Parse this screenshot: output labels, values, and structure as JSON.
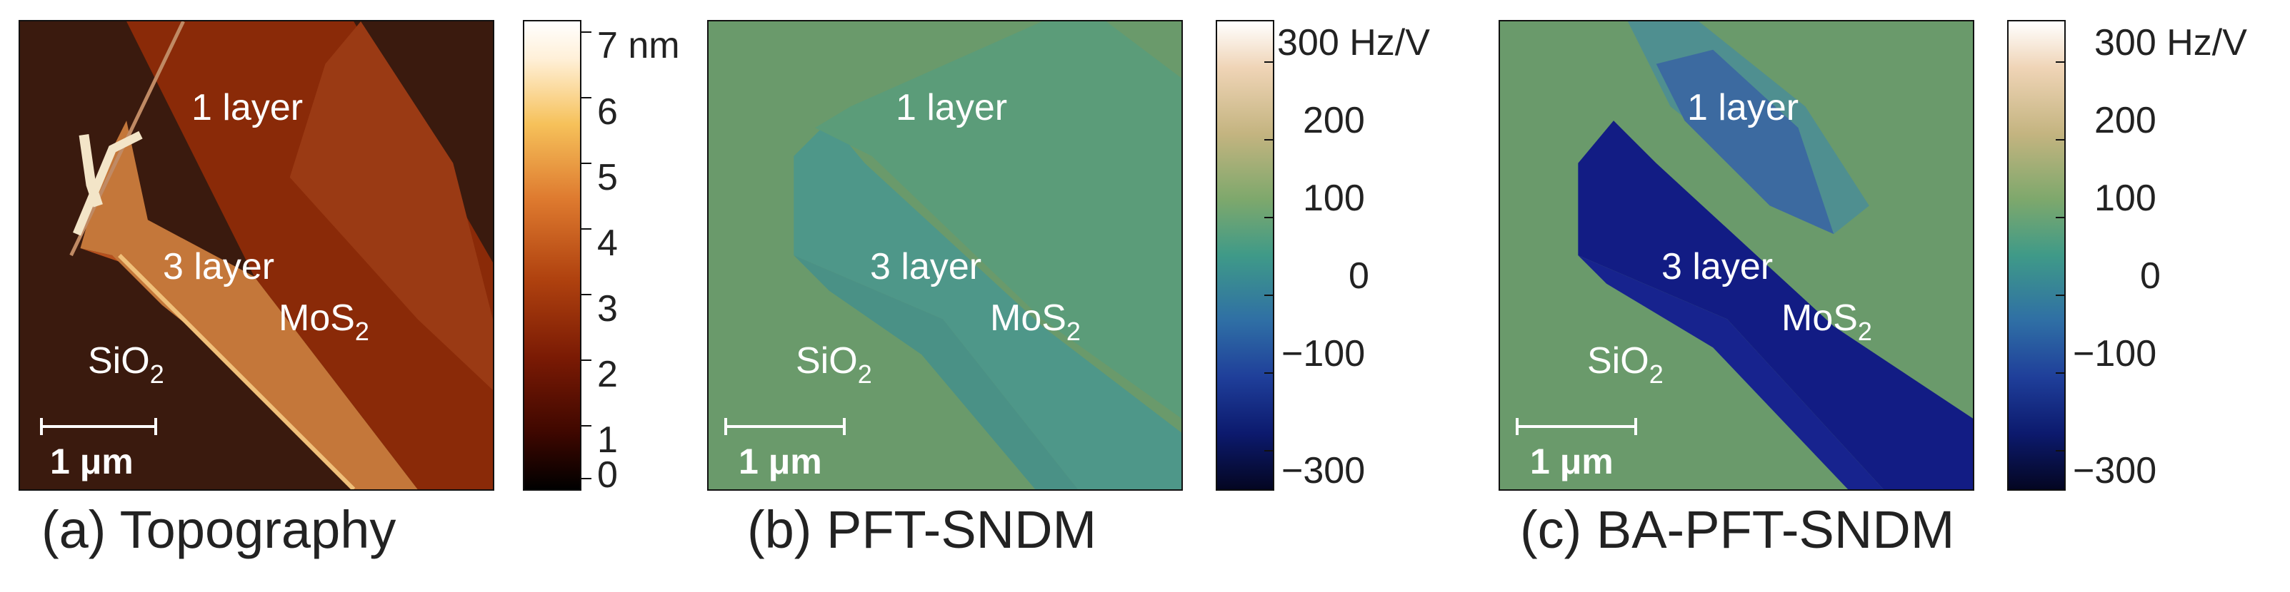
{
  "panels": [
    {
      "caption": "(a) Topography",
      "labels": {
        "one_layer": "1 layer",
        "three_layer": "3 layer",
        "mos2": "MoS",
        "mos2_sub": "2",
        "sio2": "SiO",
        "sio2_sub": "2"
      },
      "scale_bar": "1 μm",
      "colorbar": {
        "colors": [
          "#000000",
          "#5a0e00",
          "#a8360e",
          "#d9703a",
          "#f2b043",
          "#fff0d0",
          "#ffffff"
        ],
        "ticks": [
          "7 nm",
          "6",
          "5",
          "4",
          "3",
          "2",
          "1",
          "0"
        ]
      }
    },
    {
      "caption": "(b) PFT-SNDM",
      "labels": {
        "one_layer": "1 layer",
        "three_layer": "3 layer",
        "mos2": "MoS",
        "mos2_sub": "2",
        "sio2": "SiO",
        "sio2_sub": "2"
      },
      "scale_bar": "1 μm",
      "colorbar": {
        "colors": [
          "#040622",
          "#101e8a",
          "#2d5ea6",
          "#3d9a8a",
          "#7fa86b",
          "#e8c8a0",
          "#ffffff"
        ],
        "ticks": [
          "300 Hz/V",
          "200",
          "100",
          "0",
          "−100",
          "−300"
        ]
      }
    },
    {
      "caption": "(c) BA-PFT-SNDM",
      "labels": {
        "one_layer": "1 layer",
        "three_layer": "3 layer",
        "mos2": "MoS",
        "mos2_sub": "2",
        "sio2": "SiO",
        "sio2_sub": "2"
      },
      "scale_bar": "1 μm",
      "colorbar": {
        "colors": [
          "#040622",
          "#101e8a",
          "#2d5ea6",
          "#3d9a8a",
          "#7fa86b",
          "#e8c8a0",
          "#ffffff"
        ],
        "ticks": [
          "300 Hz/V",
          "200",
          "100",
          "0",
          "−100",
          "−300"
        ]
      }
    }
  ]
}
